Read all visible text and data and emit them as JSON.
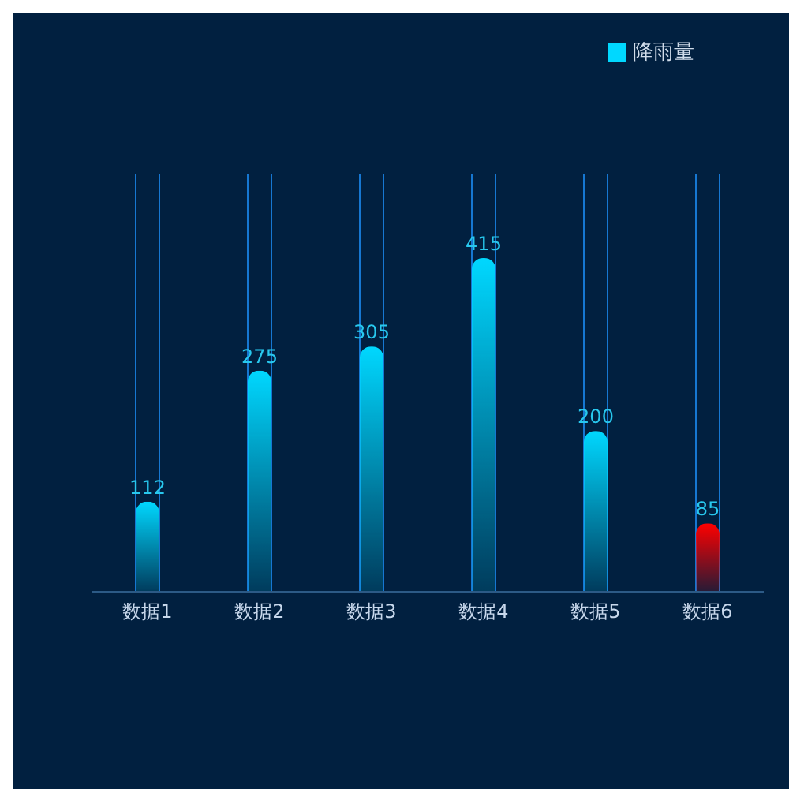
{
  "chart_data": {
    "type": "bar",
    "categories": [
      "数据1",
      "数据2",
      "数据3",
      "数据4",
      "数据5",
      "数据6"
    ],
    "series": [
      {
        "color": "#1677d2",
        "values": [
          520,
          520,
          520,
          520,
          520,
          520
        ]
      },
      {
        "name": "降雨量",
        "color": "#00d8ff",
        "colors": [
          "#00d8ff",
          "#00d8ff",
          "#00d8ff",
          "#00d8ff",
          "#00d8ff",
          "#ff0000"
        ],
        "values": [
          112,
          275,
          305,
          415,
          200,
          85
        ],
        "value_labels": [
          "112",
          "275",
          "305",
          "415",
          "200",
          "85"
        ]
      }
    ],
    "ylim": [
      0,
      520
    ],
    "legend": "top right"
  }
}
